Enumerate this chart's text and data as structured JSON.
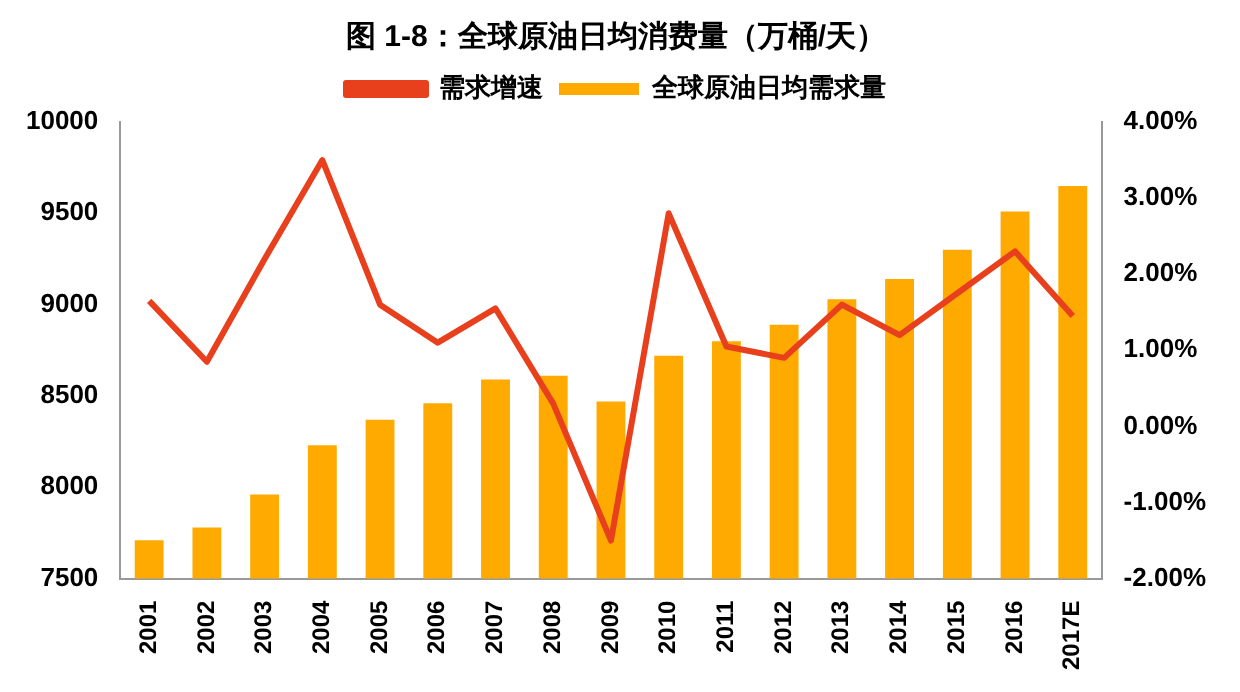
{
  "chart_data": {
    "type": "bar",
    "title": "图 1-8：全球原油日均消费量（万桶/天）",
    "categories": [
      "2001",
      "2002",
      "2003",
      "2004",
      "2005",
      "2006",
      "2007",
      "2008",
      "2009",
      "2010",
      "2011",
      "2012",
      "2013",
      "2014",
      "2015",
      "2016",
      "2017E"
    ],
    "series": [
      {
        "name": "全球原油日均需求量",
        "color": "#ffaa00",
        "values": [
          7710,
          7780,
          7960,
          8230,
          8370,
          8460,
          8590,
          8610,
          8470,
          8720,
          8800,
          8890,
          9030,
          9140,
          9300,
          9510,
          9650
        ]
      },
      {
        "name": "需求增速",
        "type": "line",
        "axis": "y2",
        "color": "#e8401c",
        "values": [
          1.65,
          0.85,
          2.2,
          3.5,
          1.6,
          1.1,
          1.55,
          0.3,
          -1.5,
          2.8,
          1.05,
          0.9,
          1.6,
          1.2,
          1.75,
          2.3,
          1.45
        ]
      }
    ],
    "ylim": [
      7500,
      10000
    ],
    "yticks": [
      7500,
      8000,
      8500,
      9000,
      9500,
      10000
    ],
    "y2lim": [
      -2,
      4
    ],
    "y2ticks": [
      {
        "value": -2,
        "label": "-2.00%"
      },
      {
        "value": -1,
        "label": "-1.00%"
      },
      {
        "value": 0,
        "label": "0.00%"
      },
      {
        "value": 1,
        "label": "1.00%"
      },
      {
        "value": 2,
        "label": "2.00%"
      },
      {
        "value": 3,
        "label": "3.00%"
      },
      {
        "value": 4,
        "label": "4.00%"
      }
    ],
    "grid": false,
    "legend": "top",
    "marker": "none"
  }
}
